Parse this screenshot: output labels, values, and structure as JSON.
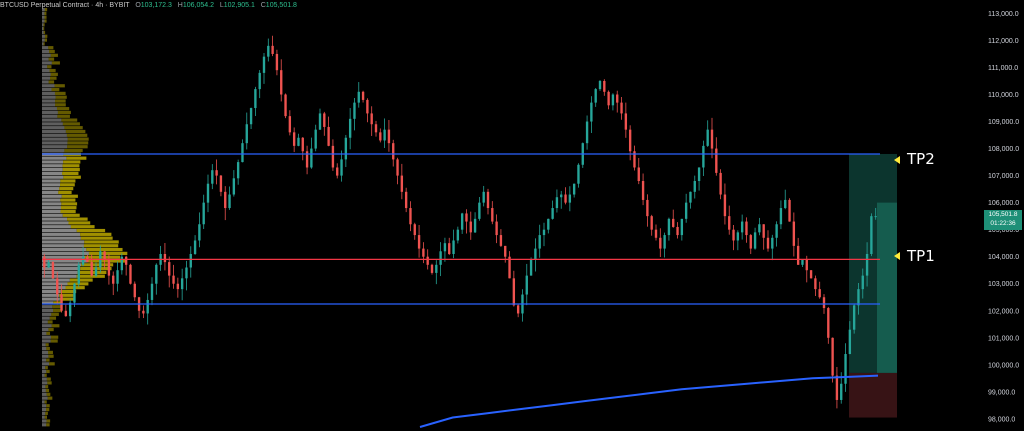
{
  "header": {
    "symbol": "BTCUSD Perpetual Contract",
    "timeframe": "4h",
    "exchange": "BYBIT",
    "open_label": "O",
    "open": "103,172.3",
    "high_label": "H",
    "high": "106,054.2",
    "low_label": "L",
    "low": "102,905.1",
    "close_label": "C",
    "close": "105,501.8"
  },
  "last_price": {
    "value": "105,501.8",
    "countdown": "01:22:36"
  },
  "labels": {
    "tp2": "TP2",
    "tp1": "TP1"
  },
  "colors": {
    "up": "#26a69a",
    "down": "#ef5350",
    "level_blue": "#2962ff",
    "level_red": "#f23645",
    "ma_line": "#2962ff",
    "volume_profile": "#c8b400"
  },
  "chart_data": {
    "type": "candlestick",
    "ylim": [
      97700,
      113200
    ],
    "y_ticks": [
      "98,000.0",
      "99,000.0",
      "100,000.0",
      "101,000.0",
      "102,000.0",
      "103,000.0",
      "104,000.0",
      "105,000.0",
      "106,000.0",
      "107,000.0",
      "108,000.0",
      "109,000.0",
      "110,000.0",
      "111,000.0",
      "112,000.0",
      "113,000.0"
    ],
    "horizontal_levels": [
      {
        "price": 107800,
        "color": "blue"
      },
      {
        "price": 103900,
        "color": "red"
      },
      {
        "price": 102250,
        "color": "blue"
      }
    ],
    "position_box": {
      "entry": 99700,
      "target": 107800,
      "stop": 98050
    },
    "price_path": [
      104000,
      103600,
      103800,
      103200,
      102600,
      102000,
      101800,
      102300,
      103000,
      103700,
      104000,
      103800,
      103300,
      103600,
      104200,
      103900,
      103300,
      103000,
      103500,
      104000,
      103700,
      103000,
      102500,
      102000,
      101900,
      102400,
      103000,
      103700,
      104100,
      103800,
      103300,
      103000,
      102800,
      103200,
      103600,
      104100,
      104600,
      105200,
      106000,
      106700,
      107200,
      107000,
      106400,
      105800,
      106300,
      106900,
      107500,
      108200,
      108900,
      109500,
      110200,
      110800,
      111400,
      111800,
      111500,
      110900,
      110000,
      109200,
      108600,
      108100,
      108400,
      107900,
      107300,
      108000,
      108700,
      109300,
      108800,
      108100,
      107300,
      107000,
      107600,
      108400,
      109100,
      109700,
      110100,
      109800,
      109300,
      108900,
      108600,
      108300,
      108700,
      108200,
      107600,
      107000,
      106400,
      105800,
      105200,
      104800,
      104300,
      104000,
      103700,
      103400,
      103700,
      104200,
      104500,
      104100,
      104600,
      105000,
      105600,
      105300,
      104900,
      105400,
      106000,
      106400,
      105800,
      105300,
      104800,
      104400,
      104000,
      103200,
      102200,
      101900,
      102600,
      103300,
      103900,
      104300,
      104800,
      105000,
      105400,
      105800,
      106200,
      106300,
      106000,
      106300,
      106700,
      107400,
      108200,
      109000,
      109700,
      110200,
      110500,
      110100,
      109600,
      110000,
      109700,
      109300,
      108700,
      107900,
      107300,
      106800,
      106100,
      105500,
      105000,
      104700,
      104300,
      104800,
      105400,
      105100,
      104800,
      105400,
      106000,
      106400,
      106800,
      107300,
      108100,
      108700,
      108000,
      107100,
      106300,
      105500,
      105000,
      104600,
      104900,
      105300,
      104800,
      104300,
      104900,
      105200,
      104700,
      104300,
      104700,
      105200,
      105800,
      106100,
      105300,
      104400,
      103700,
      103900,
      103500,
      103200,
      102800,
      102500,
      102100,
      101000,
      99600,
      98700,
      99300,
      100400,
      101300,
      102200,
      102800,
      103300,
      104100,
      105500,
      105500
    ],
    "moving_average_path": [
      {
        "price": 97700
      },
      {
        "price": 98050
      },
      {
        "price": 98200
      },
      {
        "price": 98350
      },
      {
        "price": 98500
      },
      {
        "price": 98650
      },
      {
        "price": 98800
      },
      {
        "price": 98950
      },
      {
        "price": 99100
      },
      {
        "price": 99200
      },
      {
        "price": 99300
      },
      {
        "price": 99400
      },
      {
        "price": 99500
      },
      {
        "price": 99550
      },
      {
        "price": 99600
      }
    ]
  }
}
